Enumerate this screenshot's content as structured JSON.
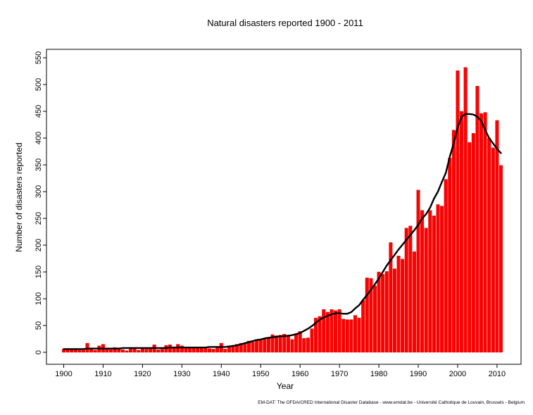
{
  "chart_data": {
    "type": "bar",
    "title": "Natural disasters reported 1900 - 2011",
    "xlabel": "Year",
    "ylabel": "Number of disasters reported",
    "source": "EM-DAT: The OFDA/CRED International Disaster Database - www.emdat.be - Université Catholique  de Louvain, Brussels - Belgium",
    "xlim": [
      1900,
      2011
    ],
    "ylim": [
      0,
      550
    ],
    "x_ticks": [
      "1900",
      "1910",
      "1920",
      "1930",
      "1940",
      "1950",
      "1960",
      "1970",
      "1980",
      "1990",
      "2000",
      "2010"
    ],
    "y_ticks": [
      "0",
      "50",
      "100",
      "150",
      "200",
      "250",
      "300",
      "350",
      "400",
      "450",
      "500",
      "550"
    ],
    "bar_color": "#ff0000",
    "bar_edge_color": "#cc0000",
    "trend_color": "#000000",
    "grid": false,
    "x": [
      1900,
      1901,
      1902,
      1903,
      1904,
      1905,
      1906,
      1907,
      1908,
      1909,
      1910,
      1911,
      1912,
      1913,
      1914,
      1915,
      1916,
      1917,
      1918,
      1919,
      1920,
      1921,
      1922,
      1923,
      1924,
      1925,
      1926,
      1927,
      1928,
      1929,
      1930,
      1931,
      1932,
      1933,
      1934,
      1935,
      1936,
      1937,
      1938,
      1939,
      1940,
      1941,
      1942,
      1943,
      1944,
      1945,
      1946,
      1947,
      1948,
      1949,
      1950,
      1951,
      1952,
      1953,
      1954,
      1955,
      1956,
      1957,
      1958,
      1959,
      1960,
      1961,
      1962,
      1963,
      1964,
      1965,
      1966,
      1967,
      1968,
      1969,
      1970,
      1971,
      1972,
      1973,
      1974,
      1975,
      1976,
      1977,
      1978,
      1979,
      1980,
      1981,
      1982,
      1983,
      1984,
      1985,
      1986,
      1987,
      1988,
      1989,
      1990,
      1991,
      1992,
      1993,
      1994,
      1995,
      1996,
      1997,
      1998,
      1999,
      2000,
      2001,
      2002,
      2003,
      2004,
      2005,
      2006,
      2007,
      2008,
      2009,
      2010,
      2011
    ],
    "values": [
      6,
      5,
      7,
      7,
      4,
      4,
      17,
      6,
      4,
      12,
      15,
      7,
      5,
      9,
      7,
      5,
      3,
      8,
      8,
      4,
      7,
      6,
      7,
      14,
      5,
      6,
      13,
      14,
      8,
      15,
      12,
      8,
      9,
      10,
      9,
      9,
      10,
      7,
      6,
      11,
      17,
      6,
      10,
      13,
      15,
      17,
      16,
      21,
      19,
      24,
      24,
      26,
      27,
      33,
      31,
      32,
      34,
      31,
      24,
      34,
      39,
      26,
      27,
      44,
      64,
      67,
      80,
      75,
      80,
      78,
      80,
      62,
      61,
      61,
      69,
      64,
      97,
      139,
      138,
      124,
      150,
      146,
      151,
      205,
      156,
      180,
      174,
      232,
      236,
      188,
      303,
      265,
      232,
      265,
      255,
      276,
      273,
      323,
      363,
      415,
      526,
      450,
      532,
      392,
      409,
      497,
      446,
      448,
      400,
      382,
      433,
      349
    ],
    "trend": [
      6,
      6,
      6,
      6,
      6,
      6,
      7,
      7,
      7,
      7,
      7,
      7,
      7,
      7,
      7,
      8,
      8,
      8,
      8,
      8,
      8,
      8,
      8,
      8,
      8,
      8,
      8,
      9,
      9,
      9,
      9,
      9,
      9,
      9,
      9,
      9,
      9,
      10,
      10,
      10,
      10,
      10,
      11,
      12,
      13,
      15,
      17,
      19,
      21,
      23,
      24,
      26,
      27,
      28,
      29,
      30,
      30,
      31,
      32,
      34,
      36,
      40,
      44,
      49,
      55,
      61,
      65,
      68,
      71,
      73,
      73,
      72,
      72,
      75,
      82,
      88,
      98,
      107,
      117,
      127,
      138,
      150,
      162,
      172,
      182,
      192,
      201,
      210,
      219,
      228,
      238,
      250,
      258,
      270,
      287,
      300,
      318,
      335,
      365,
      390,
      420,
      440,
      445,
      445,
      444,
      440,
      432,
      415,
      400,
      390,
      380,
      372
    ]
  }
}
